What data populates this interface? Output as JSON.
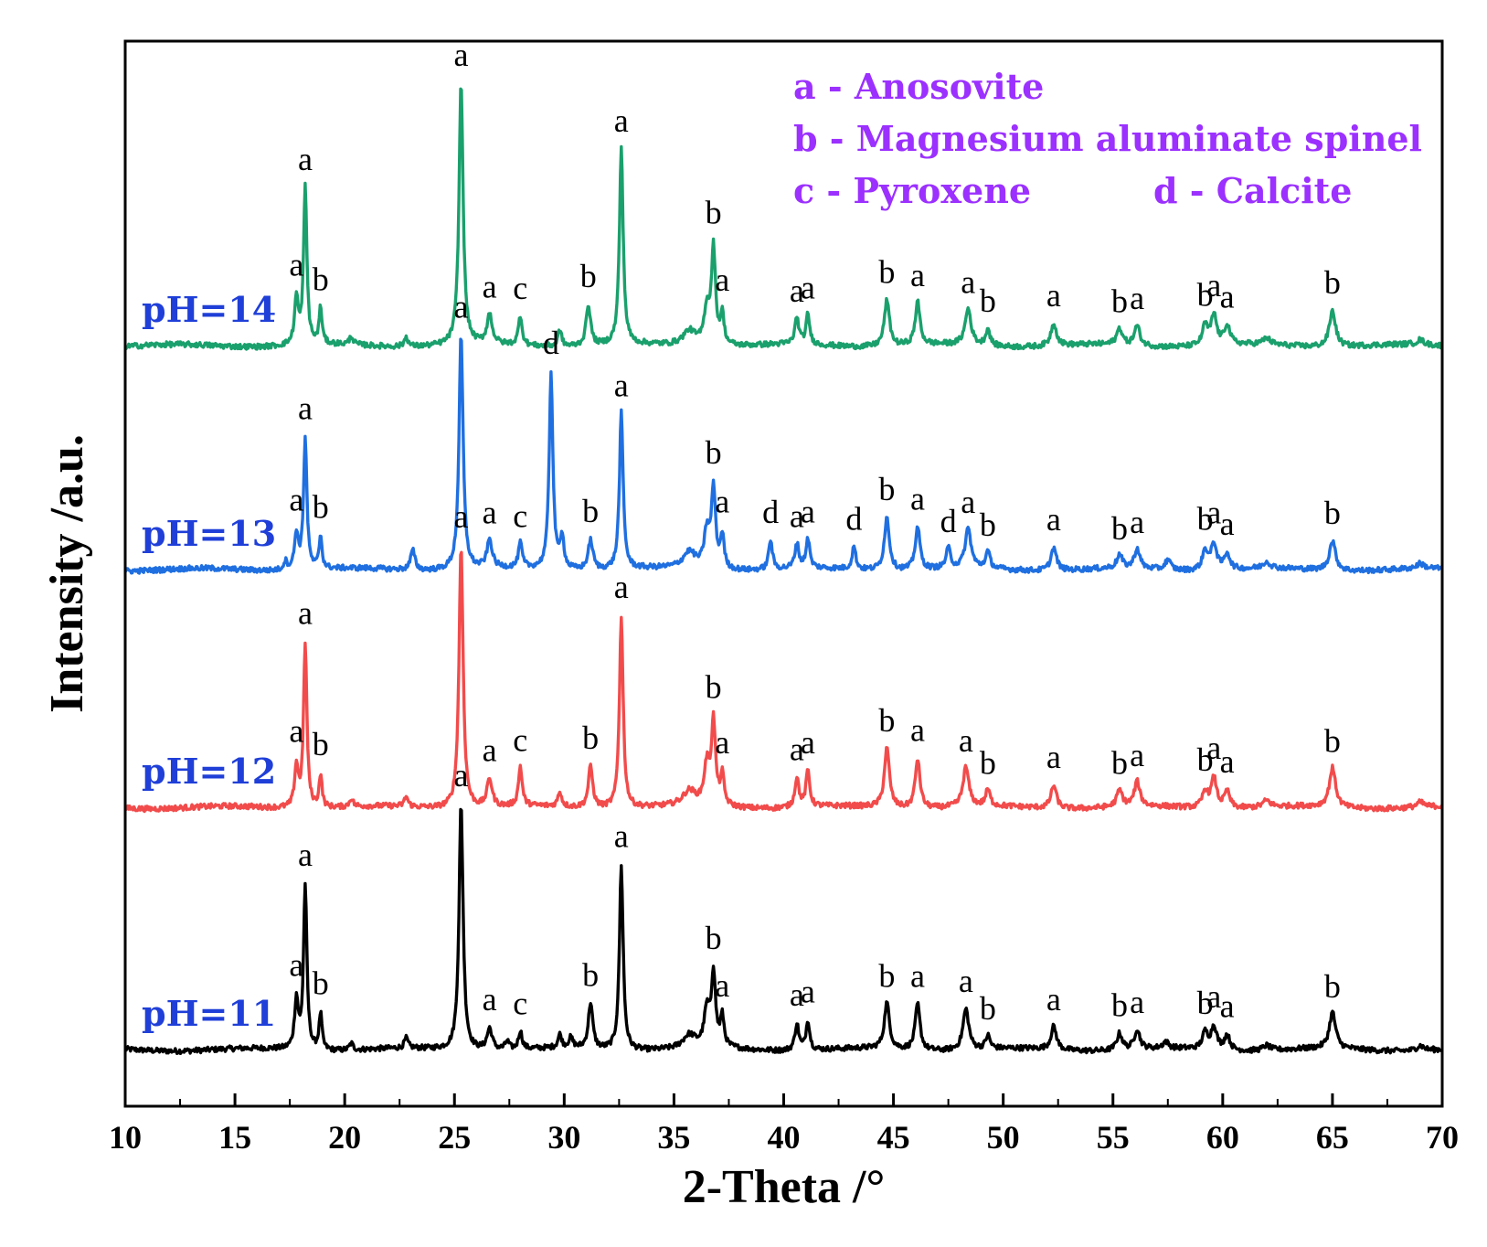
{
  "chart_data": {
    "type": "line",
    "title": "",
    "xlabel": "2-Theta /°",
    "ylabel": "Intensity /a.u.",
    "xlim": [
      10,
      70
    ],
    "x_ticks": [
      10,
      15,
      20,
      25,
      30,
      35,
      40,
      45,
      50,
      55,
      60,
      65,
      70
    ],
    "grid": false,
    "legend": [
      {
        "text": "a - Anosovite",
        "color": "#9b30ff"
      },
      {
        "text": "b - Magnesium aluminate spinel",
        "color": "#9b30ff"
      },
      {
        "text": "c - Pyroxene",
        "color": "#9b30ff"
      },
      {
        "text": "d - Calcite",
        "color": "#9b30ff"
      }
    ],
    "label_color": "#1f3fd8",
    "series": [
      {
        "name": "pH=11",
        "color": "#000000",
        "offset": 0,
        "baseline": 1.0,
        "peaks": [
          [
            17.8,
            30,
            0.1,
            "a"
          ],
          [
            18.2,
            100,
            0.09,
            "a"
          ],
          [
            18.9,
            22,
            0.08,
            "b"
          ],
          [
            20.3,
            4,
            0.1,
            ""
          ],
          [
            22.8,
            6,
            0.1,
            ""
          ],
          [
            25.3,
            150,
            0.11,
            "a"
          ],
          [
            26.6,
            13,
            0.14,
            "a"
          ],
          [
            27.4,
            5,
            0.1,
            ""
          ],
          [
            28.0,
            11,
            0.1,
            "c"
          ],
          [
            29.8,
            8,
            0.1,
            ""
          ],
          [
            30.3,
            6,
            0.12,
            ""
          ],
          [
            31.2,
            28,
            0.12,
            "b"
          ],
          [
            32.6,
            113,
            0.1,
            "a"
          ],
          [
            35.7,
            8,
            0.35,
            ""
          ],
          [
            36.5,
            22,
            0.15,
            ""
          ],
          [
            36.8,
            45,
            0.11,
            "b"
          ],
          [
            37.2,
            18,
            0.1,
            "a"
          ],
          [
            40.6,
            16,
            0.11,
            "a"
          ],
          [
            41.1,
            18,
            0.1,
            "a"
          ],
          [
            44.7,
            28,
            0.14,
            "b"
          ],
          [
            46.1,
            28,
            0.13,
            "a"
          ],
          [
            48.3,
            25,
            0.16,
            "a"
          ],
          [
            49.3,
            8,
            0.12,
            "b"
          ],
          [
            52.3,
            14,
            0.15,
            "a"
          ],
          [
            55.3,
            10,
            0.15,
            "b"
          ],
          [
            56.1,
            12,
            0.15,
            "a"
          ],
          [
            57.4,
            4,
            0.15,
            ""
          ],
          [
            59.2,
            10,
            0.15,
            "b"
          ],
          [
            59.6,
            14,
            0.15,
            "a"
          ],
          [
            60.2,
            9,
            0.15,
            "a"
          ],
          [
            62.0,
            3,
            0.2,
            ""
          ],
          [
            65.0,
            22,
            0.17,
            "b"
          ],
          [
            69.0,
            3,
            0.2,
            ""
          ]
        ]
      },
      {
        "name": "pH=12",
        "color": "#f24b4b",
        "offset": 265,
        "baseline": 0.96,
        "peaks": [
          [
            17.8,
            25,
            0.1,
            "a"
          ],
          [
            18.2,
            100,
            0.09,
            "a"
          ],
          [
            18.9,
            20,
            0.08,
            "b"
          ],
          [
            20.3,
            5,
            0.1,
            ""
          ],
          [
            22.8,
            6,
            0.1,
            ""
          ],
          [
            25.3,
            160,
            0.11,
            "a"
          ],
          [
            26.6,
            17,
            0.14,
            "a"
          ],
          [
            28.0,
            24,
            0.1,
            "c"
          ],
          [
            29.8,
            9,
            0.1,
            ""
          ],
          [
            31.2,
            25,
            0.12,
            "b"
          ],
          [
            32.6,
            117,
            0.1,
            "a"
          ],
          [
            35.7,
            9,
            0.35,
            ""
          ],
          [
            36.5,
            24,
            0.15,
            ""
          ],
          [
            36.8,
            50,
            0.11,
            "b"
          ],
          [
            37.2,
            18,
            0.1,
            "a"
          ],
          [
            40.6,
            18,
            0.11,
            "a"
          ],
          [
            41.1,
            22,
            0.1,
            "a"
          ],
          [
            44.7,
            36,
            0.14,
            "b"
          ],
          [
            46.1,
            30,
            0.13,
            "a"
          ],
          [
            48.3,
            24,
            0.16,
            "a"
          ],
          [
            49.3,
            10,
            0.12,
            "b"
          ],
          [
            52.3,
            14,
            0.15,
            "a"
          ],
          [
            55.3,
            10,
            0.15,
            "b"
          ],
          [
            56.1,
            15,
            0.15,
            "a"
          ],
          [
            59.2,
            10,
            0.15,
            "b"
          ],
          [
            59.6,
            18,
            0.15,
            "a"
          ],
          [
            60.2,
            10,
            0.15,
            "a"
          ],
          [
            62.0,
            4,
            0.2,
            ""
          ],
          [
            65.0,
            24,
            0.17,
            "b"
          ],
          [
            69.0,
            3,
            0.2,
            ""
          ]
        ]
      },
      {
        "name": "pH=13",
        "color": "#1f6fe0",
        "offset": 525,
        "baseline": 1.05,
        "peaks": [
          [
            17.3,
            5,
            0.1,
            ""
          ],
          [
            17.8,
            22,
            0.1,
            "a"
          ],
          [
            18.2,
            80,
            0.09,
            "a"
          ],
          [
            18.9,
            20,
            0.08,
            "b"
          ],
          [
            23.1,
            12,
            0.12,
            ""
          ],
          [
            25.3,
            143,
            0.11,
            "a"
          ],
          [
            26.6,
            17,
            0.14,
            "a"
          ],
          [
            28.0,
            15,
            0.1,
            "c"
          ],
          [
            29.4,
            120,
            0.1,
            "d"
          ],
          [
            29.9,
            20,
            0.1,
            ""
          ],
          [
            31.2,
            18,
            0.13,
            "b"
          ],
          [
            32.6,
            95,
            0.1,
            "a"
          ],
          [
            35.7,
            10,
            0.35,
            ""
          ],
          [
            36.5,
            22,
            0.15,
            ""
          ],
          [
            36.8,
            48,
            0.11,
            "b"
          ],
          [
            37.2,
            20,
            0.1,
            "a"
          ],
          [
            39.4,
            18,
            0.1,
            "d"
          ],
          [
            40.6,
            15,
            0.11,
            "a"
          ],
          [
            41.1,
            18,
            0.1,
            "a"
          ],
          [
            43.2,
            14,
            0.1,
            "d"
          ],
          [
            44.7,
            32,
            0.14,
            "b"
          ],
          [
            46.1,
            26,
            0.13,
            "a"
          ],
          [
            47.5,
            12,
            0.12,
            "d"
          ],
          [
            48.4,
            24,
            0.16,
            "a"
          ],
          [
            49.3,
            10,
            0.12,
            "b"
          ],
          [
            52.3,
            14,
            0.15,
            "a"
          ],
          [
            55.3,
            8,
            0.15,
            "b"
          ],
          [
            56.1,
            12,
            0.15,
            "a"
          ],
          [
            57.5,
            6,
            0.15,
            ""
          ],
          [
            59.2,
            12,
            0.15,
            "b"
          ],
          [
            59.6,
            16,
            0.15,
            "a"
          ],
          [
            60.2,
            10,
            0.15,
            "a"
          ],
          [
            62.0,
            4,
            0.2,
            ""
          ],
          [
            65.0,
            18,
            0.17,
            "b"
          ],
          [
            69.0,
            3,
            0.2,
            ""
          ]
        ]
      },
      {
        "name": "pH=14",
        "color": "#1aa06c",
        "offset": 770,
        "baseline": 1.02,
        "peaks": [
          [
            17.8,
            28,
            0.1,
            "a"
          ],
          [
            18.2,
            95,
            0.09,
            "a"
          ],
          [
            18.9,
            22,
            0.08,
            "b"
          ],
          [
            20.3,
            5,
            0.1,
            ""
          ],
          [
            22.8,
            6,
            0.1,
            ""
          ],
          [
            25.3,
            160,
            0.11,
            "a"
          ],
          [
            26.6,
            18,
            0.14,
            "a"
          ],
          [
            28.0,
            18,
            0.1,
            "c"
          ],
          [
            29.8,
            10,
            0.1,
            ""
          ],
          [
            31.1,
            25,
            0.12,
            "b"
          ],
          [
            32.6,
            120,
            0.1,
            "a"
          ],
          [
            35.7,
            9,
            0.35,
            ""
          ],
          [
            36.5,
            22,
            0.15,
            ""
          ],
          [
            36.8,
            58,
            0.11,
            "b"
          ],
          [
            37.2,
            18,
            0.1,
            "a"
          ],
          [
            40.6,
            16,
            0.11,
            "a"
          ],
          [
            41.1,
            18,
            0.1,
            "a"
          ],
          [
            44.7,
            28,
            0.14,
            "b"
          ],
          [
            46.1,
            26,
            0.13,
            "a"
          ],
          [
            48.4,
            22,
            0.16,
            "a"
          ],
          [
            49.3,
            10,
            0.12,
            "b"
          ],
          [
            52.3,
            14,
            0.15,
            "a"
          ],
          [
            55.3,
            10,
            0.15,
            "b"
          ],
          [
            56.1,
            12,
            0.15,
            "a"
          ],
          [
            59.2,
            12,
            0.15,
            "b"
          ],
          [
            59.6,
            18,
            0.15,
            "a"
          ],
          [
            60.2,
            12,
            0.15,
            "a"
          ],
          [
            62.0,
            4,
            0.2,
            ""
          ],
          [
            65.0,
            22,
            0.17,
            "b"
          ],
          [
            69.0,
            3,
            0.2,
            ""
          ]
        ]
      }
    ]
  }
}
